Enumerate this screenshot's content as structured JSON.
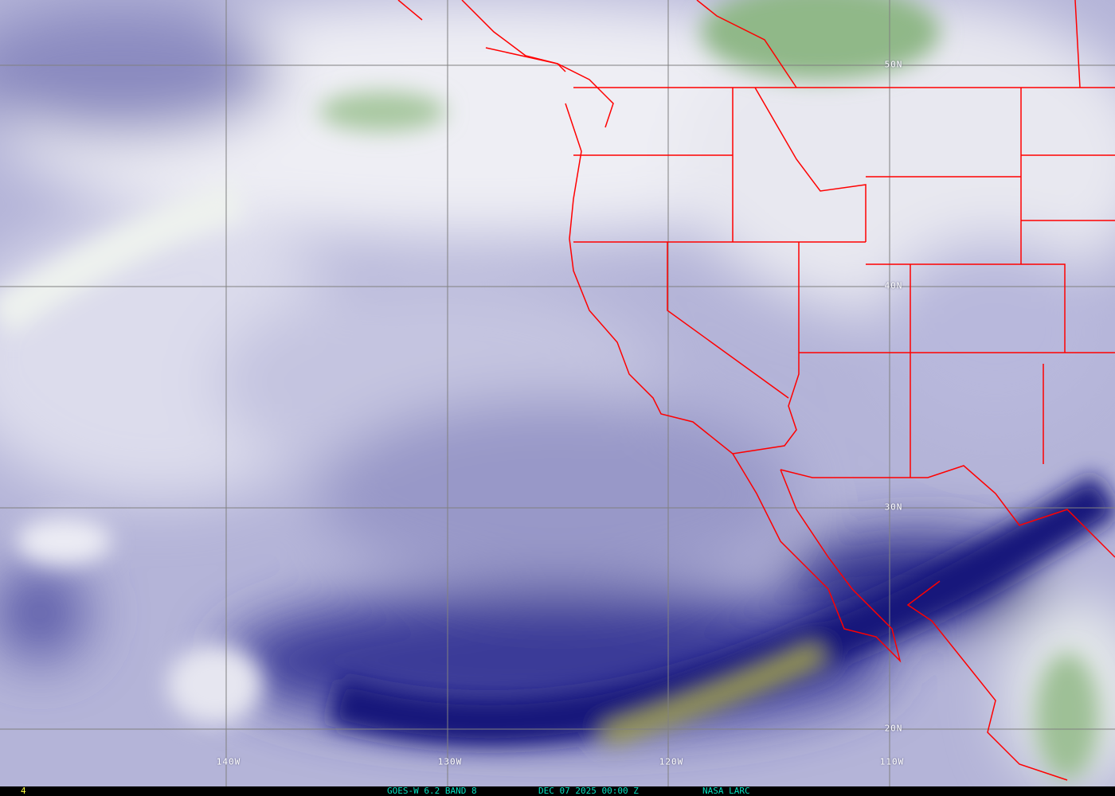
{
  "footer": {
    "frame_number": "4",
    "satellite_band": "GOES-W 6.2 BAND 8",
    "datetime": "DEC 07 2025 00:00 Z",
    "source": "NASA LARC"
  },
  "grid_labels": {
    "lat": [
      "50N",
      "40N",
      "30N",
      "20N"
    ],
    "lon": [
      "140W",
      "130W",
      "120W",
      "110W"
    ]
  },
  "colors": {
    "moist": "#f2f2f6",
    "mid": "#a8a8d0",
    "dry": "#1a1a78",
    "very_dry": "#b8b830",
    "cold_cloud": "#8fb880",
    "borders": "#ff0000",
    "grid": "#808080",
    "footer_text": "#00e0c0",
    "frame_text": "#ffff40"
  }
}
